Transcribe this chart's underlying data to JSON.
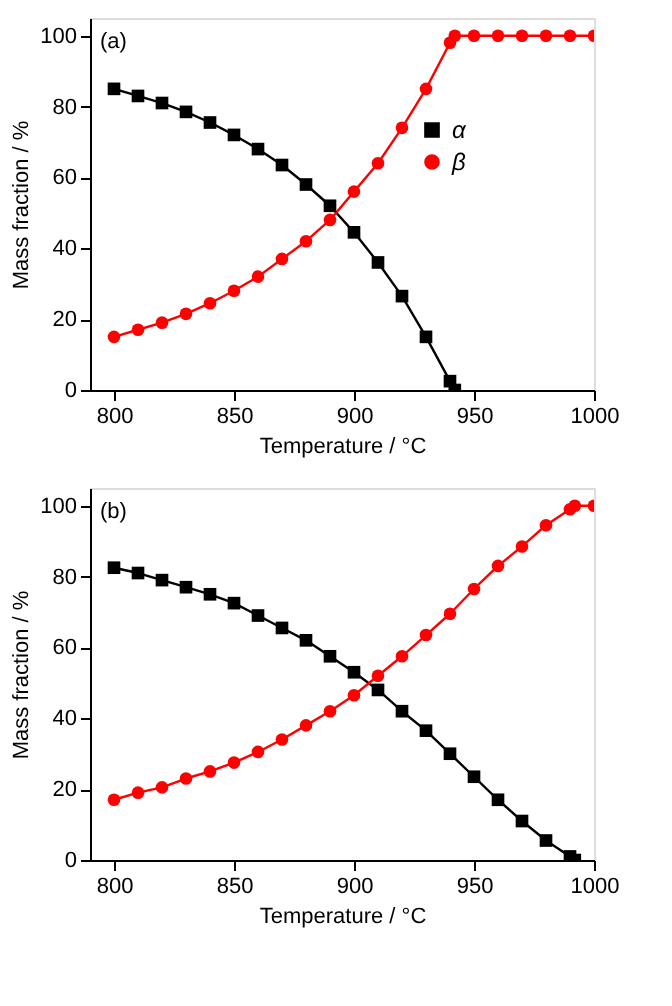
{
  "chart_data": [
    {
      "type": "line",
      "xlabel": "Temperature / °C",
      "ylabel": "Mass fraction / %",
      "annotations": [
        "(a)"
      ],
      "xlim": [
        790,
        1000
      ],
      "ylim": [
        0,
        105
      ],
      "xticks": [
        800,
        850,
        900,
        950,
        1000
      ],
      "yticks": [
        0,
        20,
        40,
        60,
        80,
        100
      ],
      "grid": false,
      "legend": "right",
      "series": [
        {
          "name": "α",
          "color": "#000000",
          "marker": "square",
          "x": [
            800,
            810,
            820,
            830,
            840,
            850,
            860,
            870,
            880,
            890,
            900,
            910,
            920,
            930,
            940,
            942
          ],
          "values": [
            85,
            83,
            81,
            78.5,
            75.5,
            72,
            68,
            63.5,
            58,
            52,
            44.5,
            36,
            26.5,
            15,
            2.5,
            0
          ]
        },
        {
          "name": "β",
          "color": "#ff0000",
          "marker": "circle",
          "x": [
            800,
            810,
            820,
            830,
            840,
            850,
            860,
            870,
            880,
            890,
            900,
            910,
            920,
            930,
            940,
            942,
            950,
            960,
            970,
            980,
            990,
            1000
          ],
          "values": [
            15,
            17,
            19,
            21.5,
            24.5,
            28,
            32,
            37,
            42,
            48,
            56,
            64,
            74,
            85,
            98,
            100,
            100,
            100,
            100,
            100,
            100,
            100
          ]
        }
      ]
    },
    {
      "type": "line",
      "xlabel": "Temperature / °C",
      "ylabel": "Mass fraction / %",
      "annotations": [
        "(b)"
      ],
      "xlim": [
        790,
        1000
      ],
      "ylim": [
        0,
        105
      ],
      "xticks": [
        800,
        850,
        900,
        950,
        1000
      ],
      "yticks": [
        0,
        20,
        40,
        60,
        80,
        100
      ],
      "grid": false,
      "legend": false,
      "series": [
        {
          "color": "#000000",
          "marker": "square",
          "x": [
            800,
            810,
            820,
            830,
            840,
            850,
            860,
            870,
            880,
            890,
            900,
            910,
            920,
            930,
            940,
            950,
            960,
            970,
            980,
            990,
            992
          ],
          "values": [
            82.5,
            81,
            79,
            77,
            75,
            72.5,
            69,
            65.5,
            62,
            57.5,
            53,
            48,
            42,
            36.5,
            30,
            23.5,
            17,
            11,
            5.5,
            1,
            0
          ]
        },
        {
          "color": "#ff0000",
          "marker": "circle",
          "x": [
            800,
            810,
            820,
            830,
            840,
            850,
            860,
            870,
            880,
            890,
            900,
            910,
            920,
            930,
            940,
            950,
            960,
            970,
            980,
            990,
            992,
            1000
          ],
          "values": [
            17,
            19,
            20.5,
            23,
            25,
            27.5,
            30.5,
            34,
            38,
            42,
            46.5,
            52,
            57.5,
            63.5,
            69.5,
            76.5,
            83,
            88.5,
            94.5,
            99,
            100,
            100
          ]
        }
      ]
    }
  ]
}
